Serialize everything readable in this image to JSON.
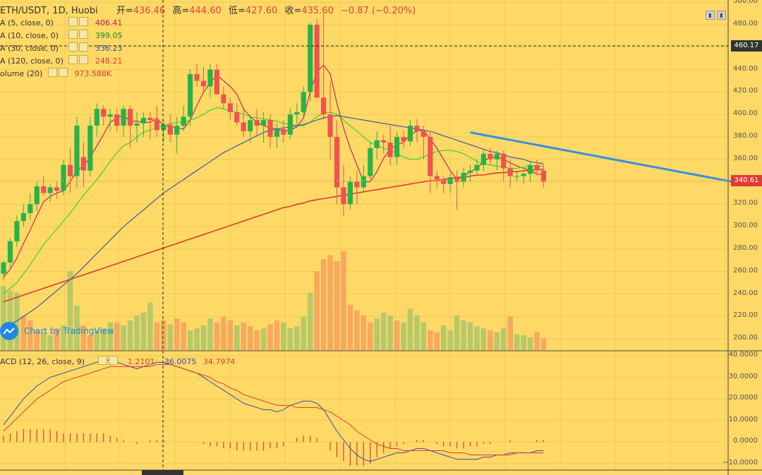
{
  "header": {
    "symbol": "ETH/USDT, 1D, Huobi",
    "open_label": "开=",
    "open": "436.46",
    "high_label": "高=",
    "high": "444.60",
    "low_label": "低=",
    "low": "427.60",
    "close_label": "收=",
    "close": "435.60",
    "change": "−0.87 (−0.20%)"
  },
  "legend": [
    {
      "label": "A (5, close, 0)",
      "value": "406.41",
      "color": "#c2185b"
    },
    {
      "label": "A (10, close, 0)",
      "value": "399.05",
      "color": "#2bd42b"
    },
    {
      "label": "A (30, close, 0)",
      "value": "336.23",
      "color": "#3949ab"
    },
    {
      "label": "A (120, close, 0)",
      "value": "248.21",
      "color": "#e53935"
    },
    {
      "label": "olume (20)",
      "value": "973.588K",
      "color": "#e53935"
    }
  ],
  "macd_legend": {
    "label": "ACD (12, 26, close, 9)",
    "hist": "1.2101",
    "macd": "36.0075",
    "signal": "34.7974",
    "hist_color": "#e53935",
    "macd_color": "#3949ab",
    "signal_color": "#e53935"
  },
  "price_axis": [
    "500.00",
    "480.00",
    "460.00",
    "440.00",
    "420.00",
    "400.00",
    "380.00",
    "360.00",
    "340.00",
    "320.00",
    "300.00",
    "280.00",
    "260.00",
    "240.00",
    "220.00",
    "200.00"
  ],
  "macd_axis": [
    "40.0000",
    "30.0000",
    "20.0000",
    "10.0000",
    "0.0000",
    "−10.0000"
  ],
  "markers": {
    "crosshair_price": "460.17",
    "last_price": "340.61"
  },
  "tv_badge": "Chart by TradingView",
  "chart_data": {
    "type": "candlestick",
    "symbol": "ETH/USDT",
    "interval": "1D",
    "ylim": [
      190,
      502
    ],
    "candles": [
      [
        258,
        270,
        252,
        268
      ],
      [
        268,
        290,
        262,
        287
      ],
      [
        287,
        310,
        282,
        305
      ],
      [
        305,
        320,
        300,
        312
      ],
      [
        312,
        330,
        306,
        320
      ],
      [
        320,
        340,
        314,
        336
      ],
      [
        336,
        345,
        328,
        330
      ],
      [
        330,
        338,
        322,
        335
      ],
      [
        335,
        340,
        325,
        332
      ],
      [
        332,
        360,
        328,
        355
      ],
      [
        355,
        370,
        330,
        345
      ],
      [
        345,
        398,
        335,
        390
      ],
      [
        362,
        375,
        335,
        350
      ],
      [
        350,
        398,
        345,
        390
      ],
      [
        390,
        410,
        380,
        405
      ],
      [
        405,
        408,
        390,
        398
      ],
      [
        398,
        405,
        385,
        400
      ],
      [
        400,
        405,
        385,
        390
      ],
      [
        390,
        408,
        380,
        405
      ],
      [
        405,
        408,
        370,
        390
      ],
      [
        390,
        402,
        375,
        392
      ],
      [
        392,
        402,
        380,
        397
      ],
      [
        397,
        402,
        378,
        395
      ],
      [
        395,
        408,
        380,
        386
      ],
      [
        386,
        395,
        375,
        391
      ],
      [
        391,
        400,
        375,
        382
      ],
      [
        382,
        398,
        365,
        390
      ],
      [
        390,
        408,
        385,
        398
      ],
      [
        398,
        440,
        390,
        436
      ],
      [
        436,
        445,
        425,
        430
      ],
      [
        430,
        442,
        420,
        425
      ],
      [
        425,
        445,
        415,
        440
      ],
      [
        440,
        445,
        420,
        418
      ],
      [
        418,
        425,
        405,
        410
      ],
      [
        410,
        415,
        395,
        402
      ],
      [
        402,
        410,
        390,
        393
      ],
      [
        393,
        405,
        380,
        385
      ],
      [
        385,
        400,
        375,
        395
      ],
      [
        395,
        405,
        380,
        390
      ],
      [
        390,
        402,
        375,
        395
      ],
      [
        395,
        400,
        370,
        380
      ],
      [
        380,
        392,
        370,
        387
      ],
      [
        387,
        395,
        375,
        382
      ],
      [
        382,
        405,
        378,
        400
      ],
      [
        400,
        410,
        390,
        402
      ],
      [
        402,
        425,
        398,
        420
      ],
      [
        420,
        482,
        412,
        480
      ],
      [
        480,
        485,
        415,
        415
      ],
      [
        415,
        490,
        395,
        400
      ],
      [
        400,
        430,
        360,
        380
      ],
      [
        380,
        395,
        320,
        335
      ],
      [
        335,
        355,
        310,
        320
      ],
      [
        320,
        345,
        315,
        340
      ],
      [
        340,
        350,
        320,
        335
      ],
      [
        335,
        355,
        330,
        345
      ],
      [
        345,
        375,
        340,
        370
      ],
      [
        370,
        385,
        360,
        377
      ],
      [
        377,
        382,
        365,
        375
      ],
      [
        375,
        390,
        355,
        362
      ],
      [
        362,
        385,
        355,
        380
      ],
      [
        380,
        386,
        370,
        376
      ],
      [
        376,
        395,
        372,
        390
      ],
      [
        390,
        396,
        375,
        385
      ],
      [
        385,
        390,
        360,
        380
      ],
      [
        380,
        385,
        330,
        345
      ],
      [
        345,
        350,
        335,
        342
      ],
      [
        342,
        345,
        330,
        338
      ],
      [
        338,
        348,
        330,
        344
      ],
      [
        344,
        350,
        315,
        340
      ],
      [
        340,
        352,
        335,
        348
      ],
      [
        348,
        355,
        340,
        350
      ],
      [
        350,
        360,
        345,
        355
      ],
      [
        355,
        368,
        350,
        365
      ],
      [
        365,
        370,
        355,
        360
      ],
      [
        360,
        368,
        350,
        365
      ],
      [
        365,
        368,
        340,
        352
      ],
      [
        352,
        360,
        335,
        345
      ],
      [
        345,
        350,
        340,
        345
      ],
      [
        345,
        350,
        338,
        347
      ],
      [
        347,
        358,
        340,
        355
      ],
      [
        355,
        360,
        345,
        350
      ],
      [
        350,
        355,
        335,
        340
      ]
    ],
    "volume": [
      [
        255,
        "up"
      ],
      [
        250,
        "up"
      ],
      [
        248,
        "up"
      ],
      [
        225,
        "down"
      ],
      [
        220,
        "down"
      ],
      [
        210,
        "down"
      ],
      [
        208,
        "up"
      ],
      [
        205,
        "up"
      ],
      [
        212,
        "down"
      ],
      [
        215,
        "up"
      ],
      [
        270,
        "up"
      ],
      [
        235,
        "up"
      ],
      [
        215,
        "down"
      ],
      [
        205,
        "down"
      ],
      [
        210,
        "up"
      ],
      [
        212,
        "up"
      ],
      [
        218,
        "up"
      ],
      [
        218,
        "down"
      ],
      [
        215,
        "up"
      ],
      [
        220,
        "up"
      ],
      [
        225,
        "up"
      ],
      [
        228,
        "up"
      ],
      [
        238,
        "up"
      ],
      [
        218,
        "down"
      ],
      [
        220,
        "down"
      ],
      [
        216,
        "up"
      ],
      [
        222,
        "down"
      ],
      [
        218,
        "down"
      ],
      [
        210,
        "up"
      ],
      [
        212,
        "up"
      ],
      [
        215,
        "up"
      ],
      [
        222,
        "up"
      ],
      [
        218,
        "down"
      ],
      [
        224,
        "down"
      ],
      [
        220,
        "down"
      ],
      [
        215,
        "up"
      ],
      [
        218,
        "down"
      ],
      [
        214,
        "down"
      ],
      [
        210,
        "down"
      ],
      [
        212,
        "up"
      ],
      [
        216,
        "down"
      ],
      [
        220,
        "down"
      ],
      [
        218,
        "up"
      ],
      [
        212,
        "up"
      ],
      [
        214,
        "up"
      ],
      [
        224,
        "up"
      ],
      [
        248,
        "up"
      ],
      [
        270,
        "down"
      ],
      [
        282,
        "down"
      ],
      [
        286,
        "down"
      ],
      [
        280,
        "down"
      ],
      [
        290,
        "down"
      ],
      [
        236,
        "down"
      ],
      [
        230,
        "down"
      ],
      [
        225,
        "down"
      ],
      [
        218,
        "down"
      ],
      [
        222,
        "up"
      ],
      [
        228,
        "up"
      ],
      [
        225,
        "up"
      ],
      [
        220,
        "down"
      ],
      [
        218,
        "up"
      ],
      [
        232,
        "up"
      ],
      [
        225,
        "up"
      ],
      [
        218,
        "up"
      ],
      [
        210,
        "down"
      ],
      [
        208,
        "down"
      ],
      [
        215,
        "up"
      ],
      [
        210,
        "up"
      ],
      [
        225,
        "up"
      ],
      [
        220,
        "up"
      ],
      [
        218,
        "up"
      ],
      [
        214,
        "up"
      ],
      [
        212,
        "up"
      ],
      [
        210,
        "down"
      ],
      [
        208,
        "up"
      ],
      [
        212,
        "up"
      ],
      [
        224,
        "down"
      ],
      [
        206,
        "up"
      ],
      [
        205,
        "up"
      ],
      [
        203,
        "up"
      ],
      [
        208,
        "down"
      ],
      [
        202,
        "down"
      ]
    ],
    "volume_ylim": [
      190,
      330
    ],
    "ma_series": [
      {
        "name": "MA 5",
        "color": "#c2185b",
        "values": [
          255,
          262,
          272,
          285,
          297,
          310,
          322,
          327,
          330,
          332,
          340,
          350,
          354,
          362,
          372,
          382,
          393,
          397,
          399,
          394,
          394,
          393,
          393,
          397,
          390,
          389,
          388,
          387,
          395,
          408,
          420,
          428,
          435,
          430,
          425,
          418,
          405,
          398,
          393,
          390,
          388,
          387,
          385,
          386,
          389,
          397,
          420,
          438,
          444,
          436,
          410,
          388,
          370,
          355,
          340,
          340,
          349,
          361,
          369,
          373,
          375,
          382,
          385,
          386,
          378,
          370,
          360,
          350,
          342,
          345,
          349,
          352,
          358,
          362,
          362,
          360,
          357,
          354,
          352,
          350,
          347,
          346
        ]
      },
      {
        "name": "MA 10",
        "color": "#2bd42b",
        "values": [
          240,
          245,
          250,
          258,
          266,
          275,
          284,
          291,
          298,
          305,
          312,
          320,
          328,
          335,
          342,
          350,
          358,
          366,
          372,
          375,
          380,
          384,
          386,
          388,
          390,
          392,
          393,
          393,
          395,
          397,
          400,
          404,
          406,
          405,
          403,
          402,
          400,
          398,
          397,
          396,
          395,
          394,
          392,
          391,
          390,
          390,
          393,
          398,
          401,
          402,
          400,
          395,
          390,
          385,
          380,
          375,
          372,
          370,
          368,
          365,
          362,
          360,
          360,
          362,
          365,
          367,
          368,
          368,
          367,
          365,
          362,
          358,
          356,
          355,
          354,
          353,
          352,
          352,
          353,
          354,
          354,
          354
        ]
      },
      {
        "name": "MA 30",
        "color": "#3949ab",
        "values": [
          210,
          213,
          216,
          220,
          224,
          228,
          233,
          238,
          243,
          248,
          253,
          258,
          264,
          270,
          276,
          282,
          288,
          294,
          300,
          305,
          310,
          315,
          320,
          325,
          330,
          334,
          338,
          342,
          346,
          350,
          354,
          358,
          362,
          366,
          369,
          372,
          375,
          378,
          381,
          384,
          386,
          387,
          388,
          389,
          390,
          391,
          393,
          395,
          397,
          398,
          399,
          398,
          397,
          396,
          395,
          394,
          393,
          392,
          391,
          390,
          389,
          388,
          387,
          386,
          385,
          383,
          381,
          379,
          377,
          375,
          373,
          371,
          369,
          367,
          366,
          364,
          362,
          361,
          360,
          358,
          357,
          356
        ]
      },
      {
        "name": "MA 120",
        "color": "#e53935",
        "values": [
          233,
          235,
          237,
          239,
          241,
          243,
          245,
          247,
          249,
          251,
          253,
          255,
          257,
          259,
          261,
          263,
          265,
          267,
          269,
          271,
          273,
          275,
          277,
          279,
          281,
          283,
          285,
          287,
          289,
          291,
          293,
          295,
          297,
          299,
          301,
          303,
          305,
          307,
          309,
          311,
          313,
          315,
          317,
          318,
          320,
          321,
          323,
          324,
          325,
          326,
          327,
          328,
          329,
          330,
          331,
          332,
          333,
          334,
          335,
          336,
          337,
          338,
          339,
          340,
          341,
          341,
          342,
          343,
          344,
          344,
          345,
          346,
          346,
          347,
          348,
          348,
          349,
          349,
          350,
          350,
          351,
          351
        ]
      }
    ],
    "trendline": {
      "from": [
        70,
        384
      ],
      "to": [
        112,
        337
      ]
    },
    "macd": {
      "ylim": [
        -13,
        42
      ],
      "macd_line": [
        8,
        12,
        16,
        20,
        23,
        26,
        28,
        30,
        31,
        32,
        33,
        34,
        35,
        36,
        37,
        38,
        38,
        37,
        36,
        35,
        34,
        35,
        36,
        37,
        37,
        36,
        35,
        34,
        33,
        32,
        30,
        28,
        26,
        24,
        22,
        20,
        18,
        17,
        16,
        15,
        15,
        14,
        15,
        17,
        18,
        19,
        19,
        18,
        15,
        10,
        5,
        1,
        -3,
        -6,
        -8,
        -9,
        -8,
        -7,
        -6,
        -5,
        -5,
        -4,
        -3,
        -3,
        -4,
        -5,
        -6,
        -7,
        -8,
        -8,
        -8,
        -8,
        -7,
        -7,
        -6,
        -6,
        -5,
        -5,
        -5,
        -5,
        -4,
        -4
      ],
      "signal_line": [
        5,
        8,
        11,
        14,
        17,
        20,
        22,
        24,
        26,
        28,
        29,
        30,
        31,
        32,
        33,
        34,
        35,
        35,
        35,
        35,
        35,
        35,
        35,
        36,
        36,
        36,
        35,
        34,
        33,
        32,
        31,
        30,
        28,
        27,
        25,
        24,
        22,
        21,
        20,
        19,
        18,
        17,
        17,
        17,
        16,
        16,
        16,
        16,
        15,
        14,
        12,
        10,
        8,
        5,
        3,
        1,
        -1,
        -2,
        -3,
        -3,
        -4,
        -4,
        -4,
        -4,
        -4,
        -4,
        -4,
        -5,
        -5,
        -5,
        -6,
        -6,
        -6,
        -6,
        -6,
        -6,
        -6,
        -5,
        -5,
        -5,
        -5,
        -5
      ],
      "hist": [
        3,
        4,
        5,
        6,
        6,
        6,
        6,
        6,
        5,
        4,
        4,
        4,
        4,
        4,
        4,
        4,
        3,
        2,
        1,
        0,
        -1,
        0,
        1,
        1,
        1,
        0,
        0,
        0,
        0,
        0,
        -1,
        -2,
        -2,
        -3,
        -3,
        -4,
        -4,
        -4,
        -4,
        -4,
        -3,
        -3,
        -2,
        0,
        2,
        3,
        3,
        2,
        0,
        -4,
        -7,
        -9,
        -11,
        -11,
        -11,
        -10,
        -7,
        -5,
        -3,
        -2,
        -1,
        0,
        1,
        1,
        0,
        -1,
        -2,
        -2,
        -3,
        -3,
        -2,
        -2,
        -1,
        -1,
        0,
        0,
        1,
        0,
        0,
        0,
        1,
        1
      ]
    }
  }
}
